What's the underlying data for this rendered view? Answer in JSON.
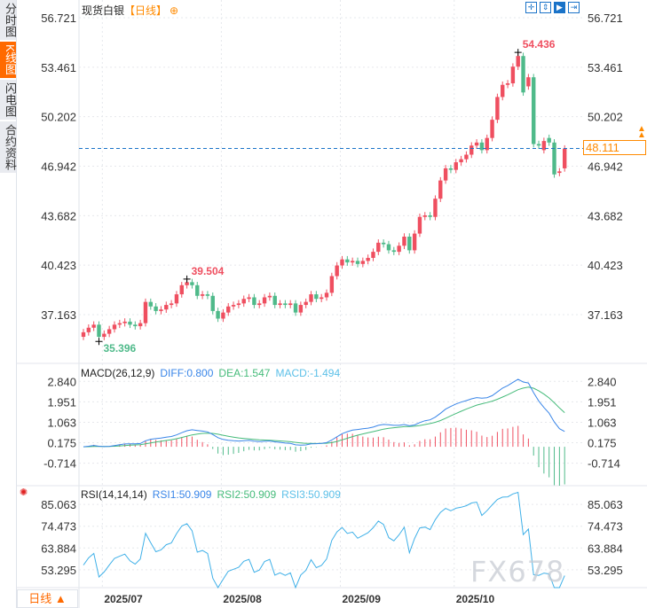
{
  "sidebar": {
    "tabs": [
      {
        "label": "分时图",
        "active": false
      },
      {
        "label": "K线图",
        "active": true
      },
      {
        "label": "闪电图",
        "active": false
      },
      {
        "label": "合约资料",
        "active": false
      }
    ]
  },
  "header": {
    "instrument": "现货白银",
    "period": "【日线】",
    "add_icon": "circle-plus-icon",
    "tools": [
      "crosshair-icon",
      "fit-vertical-icon",
      "play-forward-icon",
      "exit-right-icon"
    ]
  },
  "current_price": "48.111",
  "bottom_period_button": "日线 ▲",
  "watermark": "FX678",
  "colors": {
    "up": "#ef4f60",
    "down": "#4fba8a",
    "diff": "#3a86e8",
    "dea": "#45bb7a",
    "macd": "#5cc0e8",
    "rsi": "#3fb0e8",
    "accent": "#ff6a00",
    "price_line": "#1a73c8"
  },
  "chart_data": [
    {
      "type": "candlestick",
      "yticks": [
        "56.721",
        "53.461",
        "50.202",
        "46.942",
        "43.682",
        "40.423",
        "37.163"
      ],
      "ylim": [
        33.95,
        57.89
      ],
      "xticks": [
        "2025/07",
        "2025/08",
        "2025/09",
        "2025/10"
      ],
      "xtick_index": [
        4,
        27,
        50,
        72
      ],
      "grid": true,
      "annotations": {
        "max": {
          "label": "54.436",
          "value": 54.436,
          "index": 84
        },
        "min": {
          "label": "35.396",
          "value": 35.396,
          "index": 3
        },
        "local_high": {
          "label": "39.504",
          "value": 39.504,
          "index": 20
        }
      },
      "open": [
        35.7,
        36.0,
        36.3,
        36.5,
        35.7,
        35.9,
        36.2,
        36.5,
        36.6,
        36.7,
        36.5,
        36.4,
        36.6,
        38.0,
        37.7,
        37.4,
        37.5,
        37.8,
        37.9,
        38.5,
        39.1,
        39.3,
        39.1,
        38.4,
        38.5,
        38.4,
        37.4,
        36.9,
        37.3,
        37.7,
        37.8,
        37.9,
        38.2,
        38.3,
        37.8,
        37.9,
        38.3,
        38.4,
        37.8,
        37.9,
        37.8,
        37.9,
        37.3,
        37.8,
        38.0,
        38.5,
        38.2,
        38.3,
        38.6,
        39.7,
        40.4,
        40.8,
        40.6,
        40.7,
        40.5,
        40.7,
        40.9,
        41.3,
        41.9,
        41.8,
        41.4,
        41.3,
        41.7,
        42.3,
        41.4,
        42.5,
        43.6,
        43.7,
        43.6,
        44.8,
        46.0,
        46.8,
        46.7,
        47.2,
        47.4,
        47.7,
        48.3,
        48.5,
        48.0,
        48.8,
        50.0,
        51.5,
        52.3,
        52.4,
        53.5,
        54.2,
        52.2,
        52.8,
        48.4,
        48.0,
        48.8,
        48.5,
        46.5,
        46.8
      ],
      "close": [
        36.0,
        36.3,
        36.5,
        35.7,
        35.9,
        36.2,
        36.5,
        36.6,
        36.7,
        36.5,
        36.4,
        36.6,
        38.0,
        37.7,
        37.4,
        37.5,
        37.8,
        37.9,
        38.5,
        39.1,
        39.3,
        39.1,
        38.4,
        38.5,
        38.4,
        37.4,
        36.9,
        37.3,
        37.7,
        37.8,
        37.9,
        38.2,
        38.3,
        37.8,
        37.9,
        38.3,
        38.4,
        37.8,
        37.9,
        37.8,
        37.9,
        37.3,
        37.8,
        38.0,
        38.5,
        38.2,
        38.3,
        38.6,
        39.7,
        40.4,
        40.8,
        40.6,
        40.7,
        40.5,
        40.7,
        40.9,
        41.3,
        41.9,
        41.8,
        41.4,
        41.3,
        41.7,
        42.3,
        41.4,
        42.5,
        43.6,
        43.7,
        43.6,
        44.8,
        46.0,
        46.8,
        46.7,
        47.2,
        47.4,
        47.7,
        48.3,
        48.5,
        48.0,
        48.8,
        50.0,
        51.5,
        52.3,
        52.4,
        53.5,
        54.2,
        51.8,
        52.8,
        48.4,
        48.3,
        48.6,
        48.5,
        46.4,
        46.6,
        48.1
      ]
    },
    {
      "type": "line",
      "title": "MACD(26,12,9)",
      "series": [
        {
          "name": "DIFF",
          "label": "DIFF:0.800"
        },
        {
          "name": "DEA",
          "label": "DEA:1.547"
        },
        {
          "name": "MACD",
          "label": "MACD:-1.494"
        }
      ],
      "yticks": [
        "2.840",
        "1.951",
        "1.063",
        "0.175",
        "-0.714"
      ],
      "ylim": [
        -1.69,
        3.62
      ]
    },
    {
      "type": "line",
      "title": "RSI(14,14,14)",
      "series": [
        {
          "name": "RSI1",
          "label": "RSI1:50.909"
        },
        {
          "name": "RSI2",
          "label": "RSI2:50.909"
        },
        {
          "name": "RSI3",
          "label": "RSI3:50.909"
        }
      ],
      "yticks": [
        "85.063",
        "74.473",
        "63.884",
        "53.295"
      ],
      "ylim": [
        44.6,
        94.2
      ]
    }
  ]
}
